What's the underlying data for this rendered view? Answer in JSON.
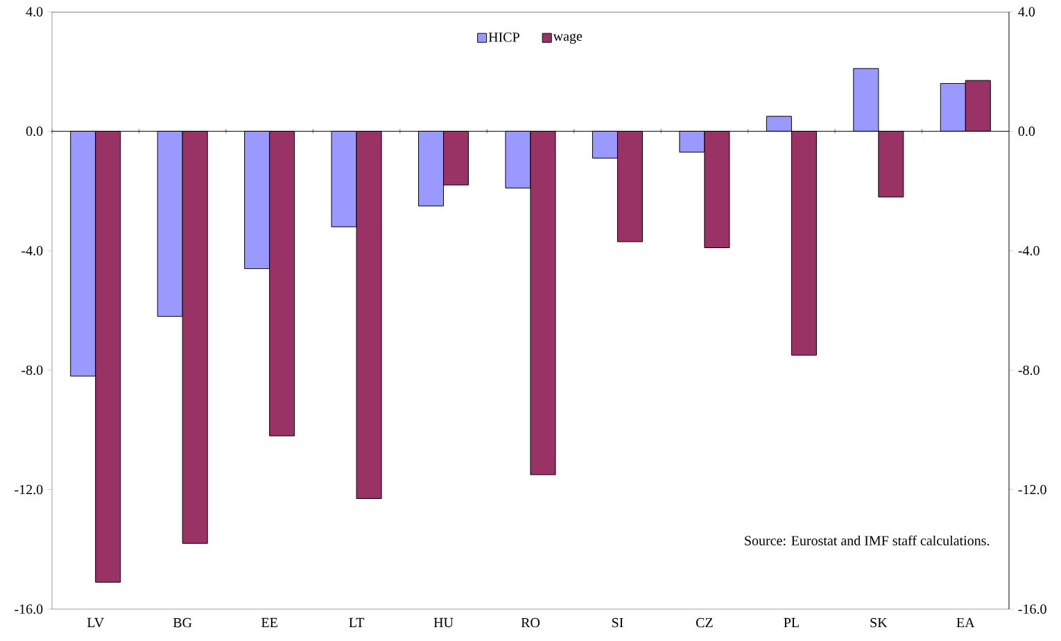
{
  "chart_data": {
    "type": "bar",
    "categories": [
      "LV",
      "BG",
      "EE",
      "LT",
      "HU",
      "RO",
      "SI",
      "CZ",
      "PL",
      "SK",
      "EA"
    ],
    "series": [
      {
        "name": "HICP",
        "color": "#9999ff",
        "values": [
          -8.2,
          -6.2,
          -4.6,
          -3.2,
          -2.5,
          -1.9,
          -0.9,
          -0.7,
          0.5,
          2.1,
          1.6
        ]
      },
      {
        "name": "wage",
        "color": "#993366",
        "values": [
          -15.1,
          -13.8,
          -10.2,
          -12.3,
          -1.8,
          -11.5,
          -3.7,
          -3.9,
          -7.5,
          -2.2,
          1.7
        ]
      }
    ],
    "ylim": [
      -16,
      4
    ],
    "yticks": [
      {
        "value": -16,
        "label": "-16.0"
      },
      {
        "value": -12,
        "label": "-12.0"
      },
      {
        "value": -8,
        "label": "-8.0"
      },
      {
        "value": -4,
        "label": "-4.0"
      },
      {
        "value": 0,
        "label": "0.0"
      },
      {
        "value": 4,
        "label": "4.0"
      }
    ],
    "y2lim": [
      -16,
      4
    ],
    "y2ticks": [
      {
        "value": -16,
        "label": "-16.0"
      },
      {
        "value": -12,
        "label": "-12.0"
      },
      {
        "value": -8,
        "label": "-8.0"
      },
      {
        "value": -4,
        "label": "-4.0"
      },
      {
        "value": 0,
        "label": "0.0"
      },
      {
        "value": 4,
        "label": "4.0"
      }
    ],
    "legend": "top",
    "annotations": [
      "Source: Eurostat and IMF staff calculations."
    ]
  }
}
